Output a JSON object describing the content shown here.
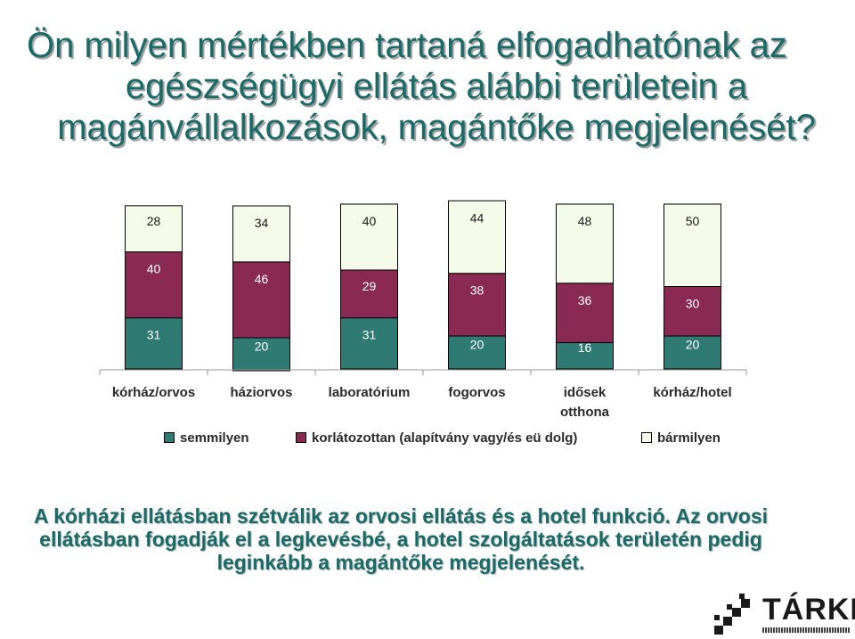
{
  "title_lines": [
    "Ön milyen mértékben tartaná elfogadhatónak az",
    "egészségügyi ellátás alábbi területein a",
    "magánvállalkozások, magántőke megjelenését?"
  ],
  "chart_data": {
    "type": "bar",
    "stacked": true,
    "percent_stacked": true,
    "categories": [
      "kórház/orvos",
      "háziorvos",
      "laboratórium",
      "fogorvos",
      "idősek otthona",
      "kórház/hotel"
    ],
    "series": [
      {
        "name": "semmilyen",
        "values": [
          31,
          20,
          31,
          20,
          16,
          20
        ],
        "color": "#2f7a72"
      },
      {
        "name": "korlátozottan (alapítvány vagy/és eü dolg)",
        "values": [
          40,
          46,
          29,
          38,
          36,
          30
        ],
        "color": "#8a2a52"
      },
      {
        "name": "bármilyen",
        "values": [
          28,
          34,
          40,
          44,
          48,
          50
        ],
        "color": "#f4fbe9"
      }
    ],
    "legend_position": "bottom",
    "grid": false,
    "ylim": [
      0,
      100
    ]
  },
  "note": "A kórházi ellátásban szétválik az orvosi ellátás és a hotel funkció. Az orvosi ellátásban fogadják el a legkevésbé, a hotel szolgáltatások területén pedig leginkább a magántőke megjelenését.",
  "logo": {
    "text": "TÁRKI"
  },
  "colors": {
    "title": "#1a6b68",
    "note": "#1a6b68"
  }
}
